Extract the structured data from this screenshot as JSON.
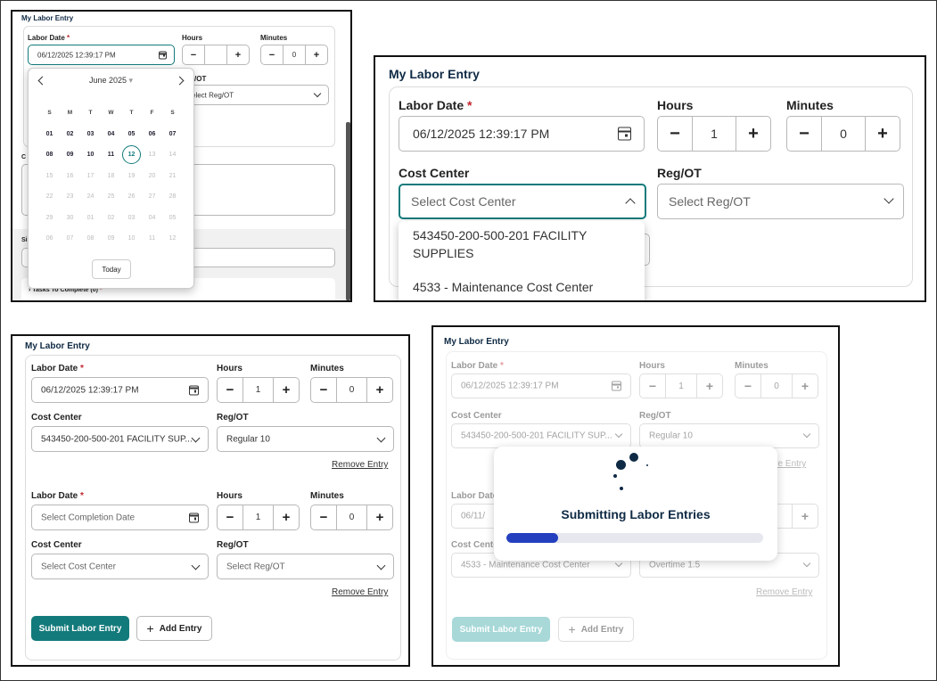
{
  "panel1": {
    "title": "My Labor Entry",
    "labor_date_label": "Labor Date",
    "required_mark": "*",
    "labor_date_value": "06/12/2025 12:39:17 PM",
    "hours_label": "Hours",
    "minutes_label": "Minutes",
    "minutes_value": "0",
    "regot_partial": "/OT",
    "regot_select_partial": "elect Reg/OT",
    "comments_partial": "C",
    "sig_partial": "Si",
    "tasks_label": "Tasks To Complete (0)",
    "calendar": {
      "month_label": "June 2025",
      "weekdays": [
        "S",
        "M",
        "T",
        "W",
        "T",
        "F",
        "S"
      ],
      "days": [
        [
          "01",
          "e"
        ],
        [
          "02",
          "e"
        ],
        [
          "03",
          "e"
        ],
        [
          "04",
          "e"
        ],
        [
          "05",
          "e"
        ],
        [
          "06",
          "e"
        ],
        [
          "07",
          "e"
        ],
        [
          "08",
          "e"
        ],
        [
          "09",
          "e"
        ],
        [
          "10",
          "e"
        ],
        [
          "11",
          "e"
        ],
        [
          "12",
          "t"
        ],
        [
          "13",
          "d"
        ],
        [
          "14",
          "d"
        ],
        [
          "15",
          "d"
        ],
        [
          "16",
          "d"
        ],
        [
          "17",
          "d"
        ],
        [
          "18",
          "d"
        ],
        [
          "19",
          "d"
        ],
        [
          "20",
          "d"
        ],
        [
          "21",
          "d"
        ],
        [
          "22",
          "d"
        ],
        [
          "23",
          "d"
        ],
        [
          "24",
          "d"
        ],
        [
          "25",
          "d"
        ],
        [
          "26",
          "d"
        ],
        [
          "27",
          "d"
        ],
        [
          "28",
          "d"
        ],
        [
          "29",
          "d"
        ],
        [
          "30",
          "d"
        ],
        [
          "01",
          "d"
        ],
        [
          "02",
          "d"
        ],
        [
          "03",
          "d"
        ],
        [
          "04",
          "d"
        ],
        [
          "05",
          "d"
        ],
        [
          "06",
          "d"
        ],
        [
          "07",
          "d"
        ],
        [
          "08",
          "d"
        ],
        [
          "09",
          "d"
        ],
        [
          "10",
          "d"
        ],
        [
          "11",
          "d"
        ],
        [
          "12",
          "d"
        ]
      ],
      "today_label": "Today"
    }
  },
  "panel2": {
    "title": "My Labor Entry",
    "labor_date_label": "Labor Date",
    "required_mark": "*",
    "labor_date_value": "06/12/2025 12:39:17 PM",
    "hours_label": "Hours",
    "hours_value": "1",
    "minutes_label": "Minutes",
    "minutes_value": "0",
    "cost_center_label": "Cost Center",
    "cost_center_placeholder": "Select Cost Center",
    "regot_label": "Reg/OT",
    "regot_placeholder": "Select Reg/OT",
    "options": [
      "543450-200-500-201 FACILITY SUPPLIES",
      "4533 - Maintenance Cost Center"
    ]
  },
  "panel3": {
    "title": "My Labor Entry",
    "entries": [
      {
        "labor_date_label": "Labor Date",
        "required_mark": "*",
        "labor_date": "06/12/2025 12:39:17 PM",
        "hours_label": "Hours",
        "hours": "1",
        "minutes_label": "Minutes",
        "minutes": "0",
        "cost_center_label": "Cost Center",
        "cost_center": "543450-200-500-201 FACILITY SUP...",
        "regot_label": "Reg/OT",
        "regot": "Regular 10",
        "remove": "Remove Entry"
      },
      {
        "labor_date_label": "Labor Date",
        "required_mark": "*",
        "labor_date": "Select Completion Date",
        "hours_label": "Hours",
        "hours": "1",
        "minutes_label": "Minutes",
        "minutes": "0",
        "cost_center_label": "Cost Center",
        "cost_center": "Select Cost Center",
        "regot_label": "Reg/OT",
        "regot": "Select Reg/OT",
        "remove": "Remove Entry"
      }
    ],
    "submit_label": "Submit Labor Entry",
    "add_label": "Add Entry"
  },
  "panel4": {
    "title": "My Labor Entry",
    "labor_date_label": "Labor Date",
    "required_mark": "*",
    "labor_date_value": "06/12/2025 12:39:17 PM",
    "hours_label": "Hours",
    "hours_value": "1",
    "minutes_label": "Minutes",
    "minutes_value": "0",
    "cost_center_label": "Cost Center",
    "cost_center_value": "543450-200-500-201 FACILITY SUP...",
    "regot_label": "Reg/OT",
    "regot_value": "Regular 10",
    "remove_partial": "ove Entry",
    "labor_date2_label": "Labor Date",
    "labor_date2_partial": "06/11/",
    "cost_center2_partial": "Cost Cente",
    "cost_center2_value": "4533 - Maintenance Cost Center",
    "regot2_value": "Overtime 1.5",
    "remove2": "Remove Entry",
    "submit_label": "Submit Labor Entry",
    "add_label": "Add Entry",
    "overlay_title": "Submitting Labor Entries",
    "progress_fraction": 0.2
  }
}
